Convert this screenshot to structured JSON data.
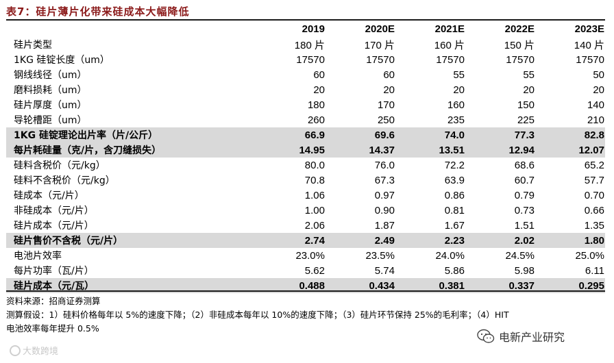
{
  "title": "表7：硅片薄片化带来硅成本大幅降低",
  "table": {
    "header_label": "",
    "years": [
      "2019",
      "2020E",
      "2021E",
      "2022E",
      "2023E"
    ],
    "rows": [
      {
        "label": "硅片类型",
        "values": [
          "180 片",
          "170 片",
          "160 片",
          "150 片",
          "140 片"
        ],
        "highlight": false
      },
      {
        "label": "1KG 硅锭长度（um）",
        "values": [
          "17570",
          "17570",
          "17570",
          "17570",
          "17570"
        ],
        "highlight": false
      },
      {
        "label": "钢线线径（um）",
        "values": [
          "60",
          "60",
          "55",
          "55",
          "50"
        ],
        "highlight": false
      },
      {
        "label": "磨料损耗（um）",
        "values": [
          "20",
          "20",
          "20",
          "20",
          "20"
        ],
        "highlight": false
      },
      {
        "label": "硅片厚度（um）",
        "values": [
          "180",
          "170",
          "160",
          "150",
          "140"
        ],
        "highlight": false
      },
      {
        "label": "导轮槽距（um）",
        "values": [
          "260",
          "250",
          "235",
          "225",
          "210"
        ],
        "highlight": false
      },
      {
        "label": "1KG 硅锭理论出片率（片/公斤）",
        "values": [
          "66.9",
          "69.6",
          "74.0",
          "77.3",
          "82.8"
        ],
        "highlight": true
      },
      {
        "label": "每片耗硅量（克/片，含刀缝损失）",
        "values": [
          "14.95",
          "14.37",
          "13.51",
          "12.94",
          "12.07"
        ],
        "highlight": true
      },
      {
        "label": "硅料含税价（元/kg）",
        "values": [
          "80.0",
          "76.0",
          "72.2",
          "68.6",
          "65.2"
        ],
        "highlight": false
      },
      {
        "label": "硅料不含税价（元/kg）",
        "values": [
          "70.8",
          "67.3",
          "63.9",
          "60.7",
          "57.7"
        ],
        "highlight": false
      },
      {
        "label": "硅成本（元/片）",
        "values": [
          "1.06",
          "0.97",
          "0.86",
          "0.79",
          "0.70"
        ],
        "highlight": false
      },
      {
        "label": "非硅成本（元/片）",
        "values": [
          "1.00",
          "0.90",
          "0.81",
          "0.73",
          "0.66"
        ],
        "highlight": false
      },
      {
        "label": "硅片成本（元/片）",
        "values": [
          "2.06",
          "1.87",
          "1.67",
          "1.51",
          "1.35"
        ],
        "highlight": false
      },
      {
        "label": "硅片售价不含税（元/片）",
        "values": [
          "2.74",
          "2.49",
          "2.23",
          "2.02",
          "1.80"
        ],
        "highlight": true
      },
      {
        "label": "电池片效率",
        "values": [
          "23.0%",
          "23.5%",
          "24.0%",
          "24.5%",
          "25.0%"
        ],
        "highlight": false
      },
      {
        "label": "每片功率（瓦/片）",
        "values": [
          "5.62",
          "5.74",
          "5.86",
          "5.98",
          "6.11"
        ],
        "highlight": false
      },
      {
        "label": "硅片成本（元/瓦）",
        "values": [
          "0.488",
          "0.434",
          "0.381",
          "0.337",
          "0.295"
        ],
        "highlight": true
      }
    ]
  },
  "source": "资料来源：招商证券测算",
  "notes_line1": "测算假设：1）硅料价格每年以 5%的速度下降；（2）非硅成本每年以 10%的速度下降；（3）硅片环节保持 25%的毛利率；（4）HIT",
  "notes_line2": "电池效率每年提升 0.5%",
  "watermark_left": "大数跨境",
  "watermark_right": "电新产业研究",
  "colors": {
    "title": "#8B1A1A",
    "highlight_row": "#d9d9d9",
    "rule": "#1a1a1a"
  }
}
